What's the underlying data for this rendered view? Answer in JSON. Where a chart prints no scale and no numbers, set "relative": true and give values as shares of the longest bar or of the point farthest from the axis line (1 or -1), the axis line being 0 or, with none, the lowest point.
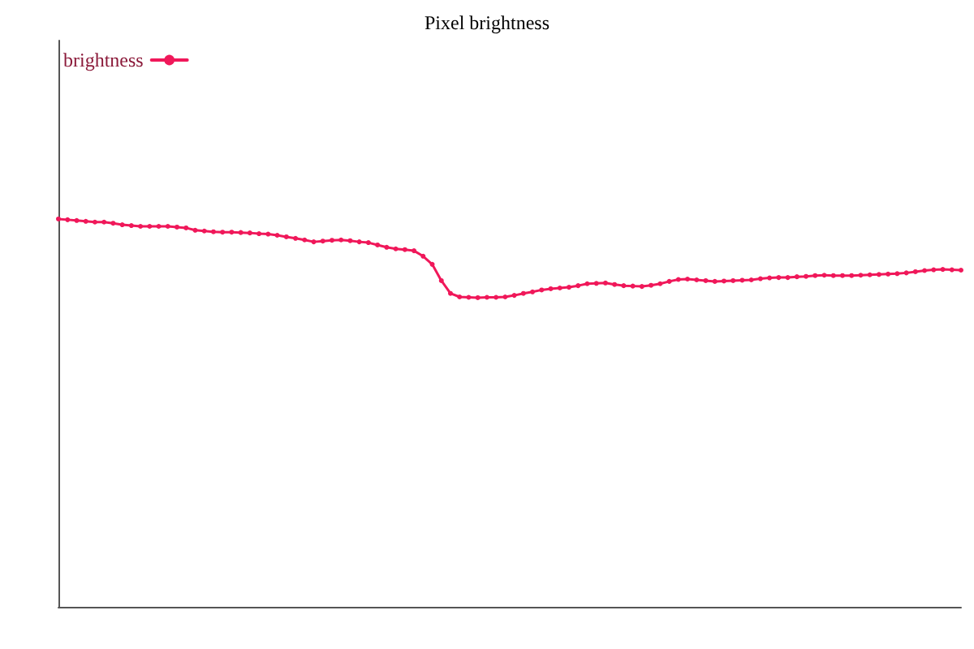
{
  "chart_data": {
    "type": "line",
    "title": "Pixel brightness",
    "relative": true,
    "legend": "top left",
    "marker": "circle",
    "line_style": "solid",
    "grid": false,
    "categories": [
      null,
      null,
      null,
      null,
      null,
      null,
      null,
      null,
      null,
      null,
      null,
      null,
      null,
      null,
      null,
      null,
      null,
      null,
      null,
      null,
      null,
      null,
      null,
      null,
      null,
      null,
      null,
      null,
      null,
      null,
      null,
      null,
      null,
      null,
      null,
      null,
      null,
      null,
      null,
      null,
      null,
      null,
      null,
      null,
      null,
      null,
      null,
      null,
      null,
      null,
      null,
      null,
      null,
      null,
      null,
      null,
      null,
      null,
      null,
      null,
      null,
      null,
      null,
      null,
      null,
      null,
      null,
      null,
      null,
      null,
      null,
      null,
      null,
      null,
      null,
      null,
      null,
      null,
      null,
      null,
      null,
      null,
      null,
      null,
      null,
      null,
      null,
      null,
      null,
      null,
      null,
      null,
      null,
      null,
      null,
      null,
      null,
      null,
      null,
      null
    ],
    "series": [
      {
        "name": "brightness",
        "color": "#f0185a",
        "values": [
          1.0,
          0.998,
          0.996,
          0.994,
          0.992,
          0.992,
          0.989,
          0.985,
          0.983,
          0.981,
          0.981,
          0.981,
          0.981,
          0.979,
          0.977,
          0.971,
          0.969,
          0.967,
          0.966,
          0.966,
          0.965,
          0.964,
          0.962,
          0.961,
          0.958,
          0.954,
          0.95,
          0.946,
          0.941,
          0.943,
          0.945,
          0.946,
          0.944,
          0.941,
          0.939,
          0.933,
          0.927,
          0.923,
          0.921,
          0.918,
          0.904,
          0.883,
          0.841,
          0.808,
          0.799,
          0.798,
          0.797,
          0.798,
          0.798,
          0.799,
          0.803,
          0.808,
          0.812,
          0.817,
          0.82,
          0.822,
          0.824,
          0.828,
          0.833,
          0.834,
          0.835,
          0.831,
          0.828,
          0.827,
          0.826,
          0.829,
          0.833,
          0.839,
          0.844,
          0.845,
          0.843,
          0.841,
          0.839,
          0.84,
          0.841,
          0.842,
          0.843,
          0.846,
          0.848,
          0.849,
          0.849,
          0.851,
          0.852,
          0.854,
          0.855,
          0.854,
          0.854,
          0.854,
          0.855,
          0.856,
          0.857,
          0.858,
          0.859,
          0.861,
          0.864,
          0.867,
          0.869,
          0.87,
          0.869,
          0.868
        ]
      }
    ]
  }
}
